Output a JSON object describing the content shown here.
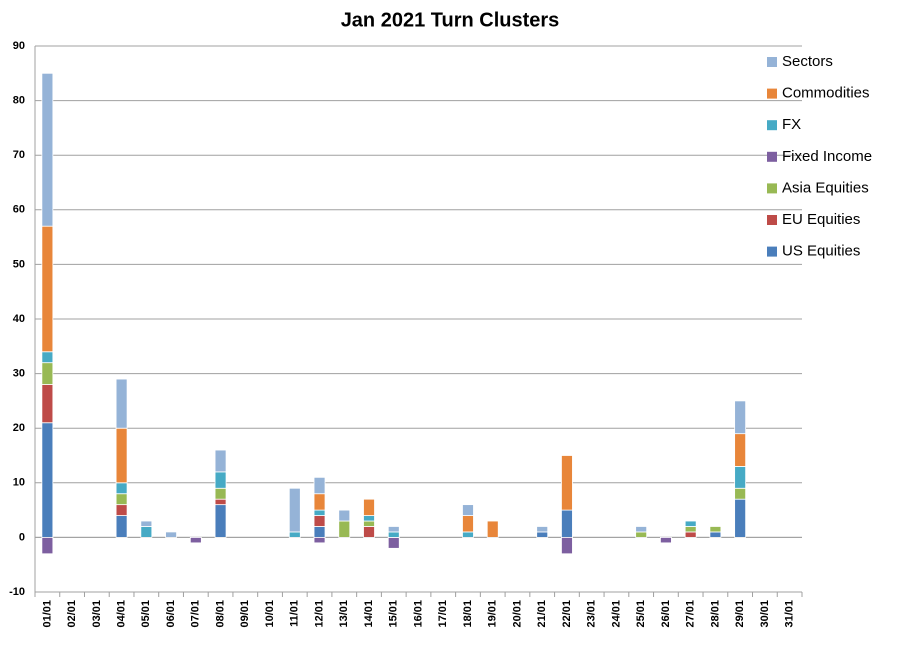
{
  "chart_data": {
    "type": "stacked_bar",
    "title": "Jan 2021 Turn Clusters",
    "categories": [
      "01/01",
      "02/01",
      "03/01",
      "04/01",
      "05/01",
      "06/01",
      "07/01",
      "08/01",
      "09/01",
      "10/01",
      "11/01",
      "12/01",
      "13/01",
      "14/01",
      "15/01",
      "16/01",
      "17/01",
      "18/01",
      "19/01",
      "20/01",
      "21/01",
      "22/01",
      "23/01",
      "24/01",
      "25/01",
      "26/01",
      "27/01",
      "28/01",
      "29/01",
      "30/01",
      "31/01"
    ],
    "series": [
      {
        "name": "US Equities",
        "color": "#4a7ebb",
        "values": [
          21,
          0,
          0,
          4,
          0,
          0,
          0,
          6,
          0,
          0,
          0,
          2,
          0,
          0,
          0,
          0,
          0,
          0,
          0,
          0,
          1,
          5,
          0,
          0,
          0,
          0,
          0,
          1,
          7,
          0,
          0
        ]
      },
      {
        "name": "EU Equities",
        "color": "#be4b48",
        "values": [
          7,
          0,
          0,
          2,
          0,
          0,
          0,
          1,
          0,
          0,
          0,
          2,
          0,
          2,
          0,
          0,
          0,
          0,
          0,
          0,
          0,
          0,
          0,
          0,
          0,
          0,
          1,
          0,
          0,
          0,
          0
        ]
      },
      {
        "name": "Asia Equities",
        "color": "#98b954",
        "values": [
          4,
          0,
          0,
          2,
          0,
          0,
          0,
          2,
          0,
          0,
          0,
          0,
          3,
          1,
          0,
          0,
          0,
          0,
          0,
          0,
          0,
          0,
          0,
          0,
          1,
          0,
          1,
          1,
          2,
          0,
          0
        ]
      },
      {
        "name": "Fixed Income",
        "color": "#7d5fa0",
        "values": [
          -3,
          0,
          0,
          0,
          0,
          0,
          -1,
          0,
          0,
          0,
          0,
          -1,
          0,
          0,
          -2,
          0,
          0,
          0,
          0,
          0,
          0,
          -3,
          0,
          0,
          0,
          -1,
          0,
          0,
          0,
          0,
          0
        ]
      },
      {
        "name": "FX",
        "color": "#46aac5",
        "values": [
          2,
          0,
          0,
          2,
          2,
          0,
          0,
          3,
          0,
          0,
          1,
          1,
          0,
          1,
          1,
          0,
          0,
          1,
          0,
          0,
          0,
          0,
          0,
          0,
          0,
          0,
          1,
          0,
          4,
          0,
          0
        ]
      },
      {
        "name": "Commodities",
        "color": "#e8863a",
        "values": [
          23,
          0,
          0,
          10,
          0,
          0,
          0,
          0,
          0,
          0,
          0,
          3,
          0,
          3,
          0,
          0,
          0,
          3,
          3,
          0,
          0,
          10,
          0,
          0,
          0,
          0,
          0,
          0,
          6,
          0,
          0
        ]
      },
      {
        "name": "Sectors",
        "color": "#95b3d7",
        "values": [
          28,
          0,
          0,
          9,
          1,
          1,
          0,
          4,
          0,
          0,
          8,
          3,
          2,
          0,
          1,
          0,
          0,
          2,
          0,
          0,
          1,
          0,
          0,
          0,
          1,
          0,
          0,
          0,
          6,
          0,
          0
        ]
      }
    ],
    "ylim": [
      -10,
      90
    ],
    "yticks": [
      -10,
      0,
      10,
      20,
      30,
      40,
      50,
      60,
      70,
      80,
      90
    ],
    "grid": true
  }
}
